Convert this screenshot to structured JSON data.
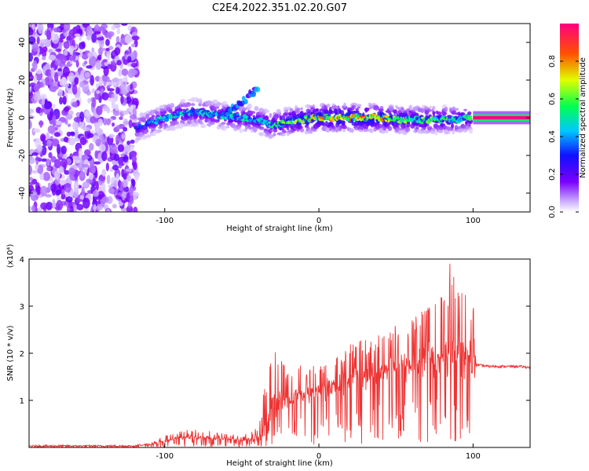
{
  "title": "C2E4.2022.351.02.20.G07",
  "chart_data": [
    {
      "type": "heatmap",
      "title": "C2E4.2022.351.02.20.G07",
      "xlabel": "Height of straight line (km)",
      "ylabel": "Frequency (Hz)",
      "xlim": [
        -188,
        137
      ],
      "ylim": [
        -50,
        50
      ],
      "x_ticks": [
        -100,
        0,
        100
      ],
      "y_ticks": [
        -40,
        -20,
        0,
        20,
        40
      ],
      "colorbar": {
        "label": "Normalized spectral amplitude",
        "range": [
          0.0,
          1.0
        ],
        "ticks": [
          "0.0",
          "0.2",
          "0.4",
          "0.6",
          "0.8"
        ],
        "colormap": [
          "#ffffff",
          "#c8a8ff",
          "#7a00ff",
          "#1010ff",
          "#00c8ff",
          "#00ff50",
          "#e0ff00",
          "#ff5000",
          "#ff0080"
        ]
      },
      "noise_region_x": [
        -188,
        -118
      ],
      "signal_trace": {
        "x": [
          -118,
          -110,
          -100,
          -90,
          -80,
          -70,
          -60,
          -50,
          -40,
          -30,
          -20,
          -10,
          0,
          10,
          20,
          30,
          40,
          50,
          60,
          70,
          80,
          90,
          98
        ],
        "frequency": [
          -6,
          -3,
          0,
          2,
          3,
          2,
          1,
          0,
          -1,
          -4,
          -2,
          -1,
          0,
          0,
          0,
          0,
          0,
          -1,
          -1,
          -1,
          -1,
          -1,
          0
        ],
        "amplitude": [
          0.35,
          0.4,
          0.45,
          0.45,
          0.45,
          0.45,
          0.45,
          0.45,
          0.45,
          0.5,
          0.6,
          0.65,
          0.7,
          0.75,
          0.75,
          0.75,
          0.7,
          0.6,
          0.55,
          0.55,
          0.55,
          0.5,
          0.5
        ]
      },
      "side_branch": {
        "x": [
          -60,
          -50,
          -45,
          -40
        ],
        "frequency": [
          3,
          8,
          12,
          15
        ]
      },
      "steady_band": {
        "x": [
          100,
          137
        ],
        "frequency": 0,
        "amplitude": 1.0
      }
    },
    {
      "type": "line",
      "xlabel": "Height of straight line (km)",
      "ylabel": "SNR (10 * v/v)",
      "y_multiplier": "(x10⁴)",
      "xlim": [
        -188,
        137
      ],
      "ylim": [
        0,
        4
      ],
      "x_ticks": [
        -100,
        0,
        100
      ],
      "y_ticks": [
        1,
        2,
        3,
        4
      ],
      "color": "#ee3333",
      "series": [
        {
          "x": [
            -188,
            -120,
            -110,
            -100,
            -90,
            -80,
            -70,
            -60,
            -50,
            -40,
            -35,
            -30,
            -25,
            -20,
            -15,
            -10,
            -5,
            0,
            5,
            10,
            20,
            30,
            40,
            50,
            60,
            70,
            80,
            85,
            90,
            95,
            100,
            103,
            110,
            120,
            130,
            137
          ],
          "y": [
            0.03,
            0.03,
            0.06,
            0.12,
            0.2,
            0.22,
            0.2,
            0.18,
            0.15,
            0.15,
            0.2,
            0.6,
            0.9,
            1.0,
            1.1,
            1.2,
            1.2,
            1.3,
            1.3,
            1.4,
            1.5,
            1.6,
            1.7,
            1.8,
            1.8,
            1.9,
            1.9,
            1.9,
            1.85,
            1.8,
            1.8,
            1.75,
            1.72,
            1.72,
            1.72,
            1.7
          ],
          "y_peak": [
            0.03,
            0.05,
            0.1,
            0.25,
            0.35,
            0.4,
            0.35,
            0.3,
            0.25,
            0.45,
            1.3,
            2.2,
            2.0,
            1.9,
            1.8,
            1.7,
            1.75,
            1.8,
            1.9,
            2.0,
            2.2,
            2.3,
            2.4,
            2.6,
            2.7,
            3.0,
            3.3,
            4.0,
            3.5,
            3.4,
            3.2,
            1.75,
            1.72,
            1.72,
            1.72,
            1.7
          ]
        }
      ]
    }
  ]
}
